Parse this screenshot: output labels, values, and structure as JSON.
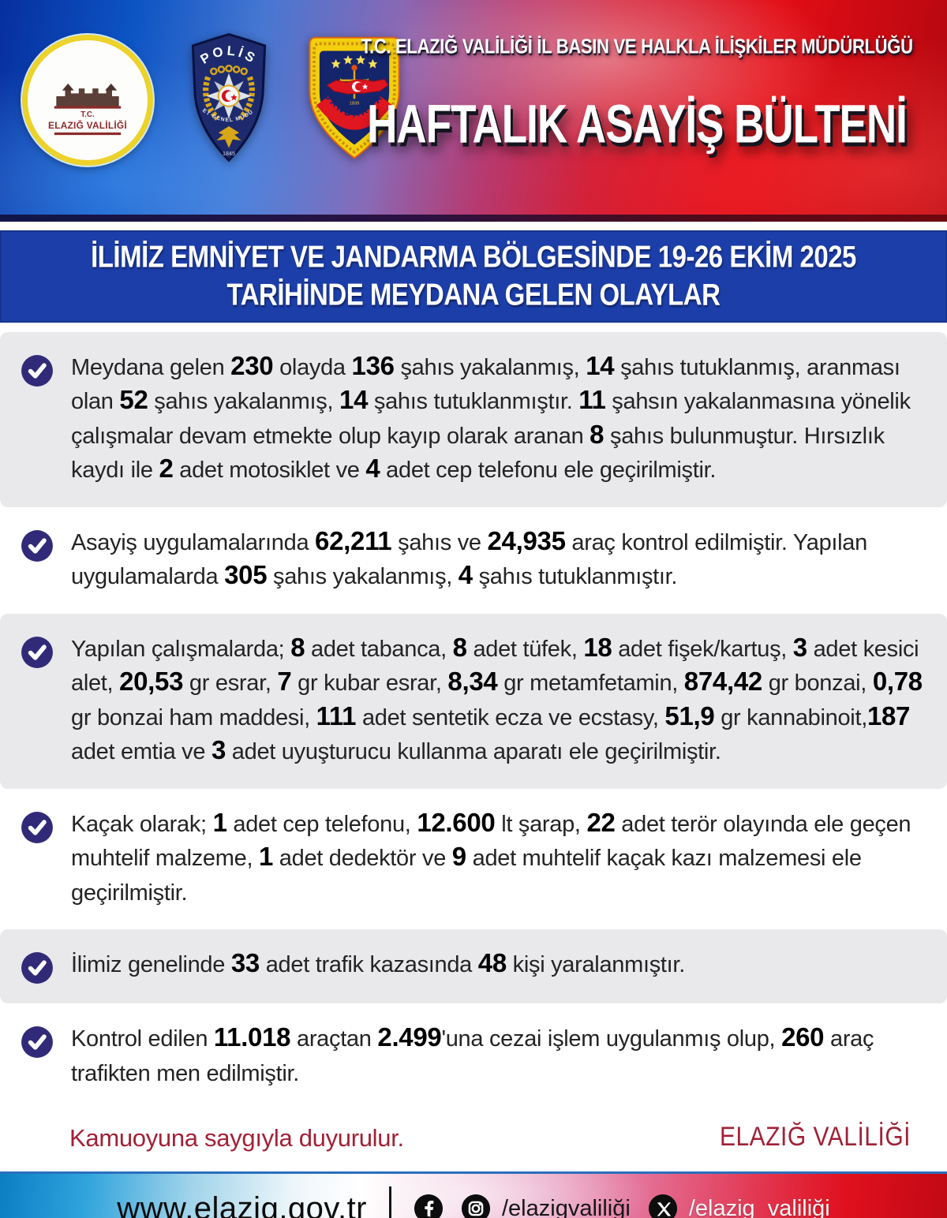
{
  "header": {
    "ministry_line": "T.C. ELAZIĞ VALİLİĞİ İL BASIN VE HALKLA İLİŞKİLER MÜDÜRLÜĞÜ",
    "title": "HAFTALIK ASAYİŞ BÜLTENİ",
    "logos": {
      "valilik": {
        "line1": "T.C.",
        "line2": "ELAZIĞ VALİLİĞİ"
      },
      "polis": {
        "arc_top": "POLİS",
        "arc_bottom": "EMNİYET GENEL MÜDÜRLÜĞÜ",
        "year": "1845"
      },
      "jandarma": {
        "band": "JANDARMA",
        "year": "1839"
      }
    }
  },
  "banner": {
    "line1": "İLİMİZ EMNİYET VE JANDARMA BÖLGESİNDE 19-26 EKİM 2025",
    "line2": "TARİHİNDE MEYDANA GELEN OLAYLAR"
  },
  "bullets": [
    {
      "shaded": true,
      "segments": [
        {
          "t": "Meydana gelen "
        },
        {
          "t": "230",
          "b": true
        },
        {
          "t": " olayda "
        },
        {
          "t": "136",
          "b": true
        },
        {
          "t": " şahıs yakalanmış, "
        },
        {
          "t": "14",
          "b": true
        },
        {
          "t": " şahıs tutuklanmış, aranması olan "
        },
        {
          "t": "52",
          "b": true
        },
        {
          "t": " şahıs yakalanmış, "
        },
        {
          "t": "14",
          "b": true
        },
        {
          "t": " şahıs tutuklanmıştır. "
        },
        {
          "t": "11",
          "b": true
        },
        {
          "t": " şahsın yakalanmasına yönelik çalışmalar devam etmekte olup kayıp olarak aranan "
        },
        {
          "t": "8",
          "b": true
        },
        {
          "t": " şahıs bulunmuştur. Hırsızlık kaydı ile "
        },
        {
          "t": "2",
          "b": true
        },
        {
          "t": " adet motosiklet ve "
        },
        {
          "t": "4",
          "b": true
        },
        {
          "t": " adet cep telefonu ele geçirilmiştir."
        }
      ]
    },
    {
      "shaded": false,
      "segments": [
        {
          "t": "Asayiş uygulamalarında "
        },
        {
          "t": "62,211",
          "b": true
        },
        {
          "t": " şahıs ve "
        },
        {
          "t": "24,935",
          "b": true
        },
        {
          "t": " araç kontrol edilmiştir. Yapılan uygulamalarda "
        },
        {
          "t": "305",
          "b": true
        },
        {
          "t": " şahıs yakalanmış, "
        },
        {
          "t": "4",
          "b": true
        },
        {
          "t": " şahıs tutuklanmıştır."
        }
      ]
    },
    {
      "shaded": true,
      "segments": [
        {
          "t": "Yapılan çalışmalarda; "
        },
        {
          "t": "8",
          "b": true
        },
        {
          "t": " adet tabanca, "
        },
        {
          "t": "8",
          "b": true
        },
        {
          "t": " adet tüfek, "
        },
        {
          "t": "18",
          "b": true
        },
        {
          "t": " adet fişek/kartuş, "
        },
        {
          "t": "3",
          "b": true
        },
        {
          "t": " adet kesici alet, "
        },
        {
          "t": "20,53",
          "b": true
        },
        {
          "t": " gr esrar, "
        },
        {
          "t": "7",
          "b": true
        },
        {
          "t": " gr kubar esrar, "
        },
        {
          "t": "8,34",
          "b": true
        },
        {
          "t": " gr metamfetamin, "
        },
        {
          "t": "874,42",
          "b": true
        },
        {
          "t": " gr bonzai, "
        },
        {
          "t": "0,78",
          "b": true
        },
        {
          "t": " gr bonzai ham maddesi, "
        },
        {
          "t": "111",
          "b": true
        },
        {
          "t": " adet sentetik ecza ve ecstasy, "
        },
        {
          "t": "51,9",
          "b": true
        },
        {
          "t": " gr kannabinoit,"
        },
        {
          "t": "187",
          "b": true
        },
        {
          "t": " adet emtia ve "
        },
        {
          "t": "3",
          "b": true
        },
        {
          "t": " adet uyuşturucu kullanma aparatı ele geçirilmiştir."
        }
      ]
    },
    {
      "shaded": false,
      "segments": [
        {
          "t": "Kaçak olarak; "
        },
        {
          "t": "1",
          "b": true
        },
        {
          "t": " adet cep telefonu, "
        },
        {
          "t": "12.600",
          "b": true
        },
        {
          "t": " lt şarap, "
        },
        {
          "t": "22",
          "b": true
        },
        {
          "t": " adet terör olayında ele geçen muhtelif malzeme, "
        },
        {
          "t": "1",
          "b": true
        },
        {
          "t": " adet dedektör ve "
        },
        {
          "t": "9",
          "b": true
        },
        {
          "t": " adet muhtelif kaçak kazı malzemesi ele geçirilmiştir."
        }
      ]
    },
    {
      "shaded": true,
      "segments": [
        {
          "t": "İlimiz genelinde "
        },
        {
          "t": "33",
          "b": true
        },
        {
          "t": " adet trafik kazasında "
        },
        {
          "t": "48",
          "b": true
        },
        {
          "t": " kişi yaralanmıştır."
        }
      ]
    },
    {
      "shaded": false,
      "segments": [
        {
          "t": "Kontrol edilen "
        },
        {
          "t": "11.018",
          "b": true
        },
        {
          "t": " araçtan "
        },
        {
          "t": "2.499",
          "b": true
        },
        {
          "t": "'una cezai işlem uygulanmış olup, "
        },
        {
          "t": "260",
          "b": true
        },
        {
          "t": " araç trafikten men edilmiştir."
        }
      ]
    }
  ],
  "signoff": {
    "left": "Kamuoyuna saygıyla duyurulur.",
    "right": "ELAZIĞ VALİLİĞİ"
  },
  "footer": {
    "website": "www.elazig.gov.tr",
    "divider": "|",
    "handle_fb_ig": "/elazigvaliliği",
    "handle_x": "/elazig_valiliği",
    "icons": [
      "facebook-icon",
      "instagram-icon",
      "x-icon"
    ]
  },
  "colors": {
    "banner_blue": "#1c3ea9",
    "bullet_indigo": "#312a78",
    "band_gray": "#e9e9ec",
    "signoff_red": "#a12136",
    "header_blue": "#0d54c4",
    "header_red": "#e30d16",
    "jandarma_yellow": "#f3cf0e",
    "polis_navy": "#1d2b6e"
  }
}
